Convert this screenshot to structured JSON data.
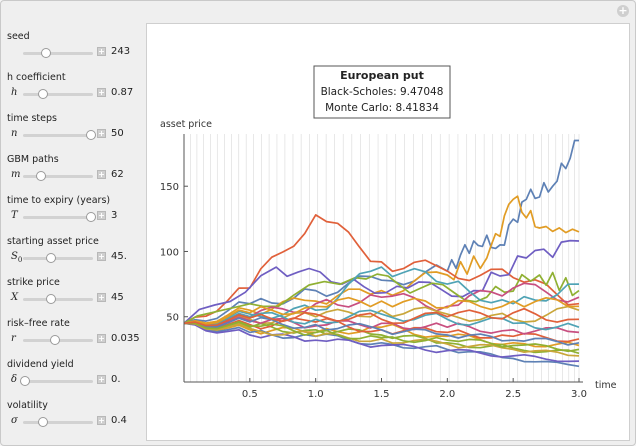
{
  "window": {
    "expand_icon": "plus-circle-icon"
  },
  "controls": [
    {
      "label": "seed",
      "symbol": "",
      "value": "243",
      "knob": 0.33
    },
    {
      "label": "h coefficient",
      "symbol": "h",
      "value": "0.87",
      "knob": 0.28
    },
    {
      "label": "time steps",
      "symbol": "n",
      "value": "50",
      "knob": 0.97
    },
    {
      "label": "GBM paths",
      "symbol": "m",
      "value": "62",
      "knob": 0.25
    },
    {
      "label": "time to expiry (years)",
      "symbol": "T",
      "value": "3",
      "knob": 0.97
    },
    {
      "label": "starting asset price",
      "symbol": "S",
      "value": "45.",
      "knob": 0.4
    },
    {
      "label": "strike price",
      "symbol": "X",
      "value": "45",
      "knob": 0.4
    },
    {
      "label": "risk–free rate",
      "symbol": "r",
      "value": "0.035",
      "knob": 0.45
    },
    {
      "label": "dividend yield",
      "symbol": "δ",
      "value": "0.",
      "knob": 0.03
    },
    {
      "label": "volatility",
      "symbol": "σ",
      "value": "0.4",
      "knob": 0.28
    }
  ],
  "legend_box": {
    "title": "European put",
    "line1": "Black-Scholes: 9.47048",
    "line2": "Monte Carlo: 8.41834"
  },
  "chart_data": {
    "type": "line",
    "ylabel": "asset price",
    "xlabel": "time",
    "xlim": [
      0,
      3.0
    ],
    "ylim": [
      0,
      190
    ],
    "xticks": [
      "0.5",
      "1.0",
      "1.5",
      "2.0",
      "2.5",
      "3.0"
    ],
    "yticks": [
      "50",
      "100",
      "150"
    ],
    "series": [
      {
        "color": "#5e81b5",
        "values": [
          [
            0,
            45
          ],
          [
            0.5,
            60
          ],
          [
            1.0,
            70
          ],
          [
            1.5,
            78
          ],
          [
            2.0,
            85
          ],
          [
            2.2,
            108
          ],
          [
            2.4,
            105
          ],
          [
            2.6,
            140
          ],
          [
            2.8,
            150
          ],
          [
            3.0,
            185
          ]
        ]
      },
      {
        "color": "#e19c24",
        "values": [
          [
            0,
            45
          ],
          [
            0.5,
            55
          ],
          [
            1.0,
            62
          ],
          [
            1.5,
            70
          ],
          [
            2.0,
            82
          ],
          [
            2.3,
            95
          ],
          [
            2.5,
            140
          ],
          [
            2.7,
            118
          ],
          [
            3.0,
            115
          ]
        ]
      },
      {
        "color": "#e0603a",
        "values": [
          [
            0,
            45
          ],
          [
            0.5,
            72
          ],
          [
            1.0,
            128
          ],
          [
            1.5,
            92
          ],
          [
            2.0,
            85
          ],
          [
            2.5,
            80
          ],
          [
            3.0,
            60
          ]
        ]
      },
      {
        "color": "#6f5ec2",
        "values": [
          [
            0,
            45
          ],
          [
            0.7,
            88
          ],
          [
            1.2,
            75
          ],
          [
            1.7,
            72
          ],
          [
            2.2,
            70
          ],
          [
            2.6,
            95
          ],
          [
            3.0,
            108
          ]
        ]
      },
      {
        "color": "#8fb032",
        "values": [
          [
            0,
            45
          ],
          [
            0.6,
            58
          ],
          [
            1.3,
            80
          ],
          [
            1.8,
            72
          ],
          [
            2.3,
            65
          ],
          [
            2.7,
            82
          ],
          [
            3.0,
            70
          ]
        ]
      },
      {
        "color": "#c84f80",
        "values": [
          [
            0,
            45
          ],
          [
            0.5,
            50
          ],
          [
            1.0,
            60
          ],
          [
            1.5,
            65
          ],
          [
            2.0,
            58
          ],
          [
            2.5,
            72
          ],
          [
            3.0,
            65
          ]
        ]
      },
      {
        "color": "#4fa3b5",
        "values": [
          [
            0,
            45
          ],
          [
            0.5,
            52
          ],
          [
            1.0,
            55
          ],
          [
            1.5,
            88
          ],
          [
            2.0,
            75
          ],
          [
            2.5,
            60
          ],
          [
            3.0,
            75
          ]
        ]
      },
      {
        "color": "#c9a63a",
        "values": [
          [
            0,
            45
          ],
          [
            0.5,
            48
          ],
          [
            1.0,
            50
          ],
          [
            1.5,
            55
          ],
          [
            2.0,
            52
          ],
          [
            2.5,
            48
          ],
          [
            3.0,
            55
          ]
        ]
      },
      {
        "color": "#e19c24",
        "values": [
          [
            0,
            45
          ],
          [
            0.5,
            40
          ],
          [
            1.0,
            38
          ],
          [
            1.5,
            42
          ],
          [
            2.0,
            35
          ],
          [
            2.5,
            30
          ],
          [
            3.0,
            28
          ]
        ]
      },
      {
        "color": "#5e81b5",
        "values": [
          [
            0,
            45
          ],
          [
            0.5,
            38
          ],
          [
            1.0,
            35
          ],
          [
            1.5,
            30
          ],
          [
            2.0,
            25
          ],
          [
            2.5,
            18
          ],
          [
            3.0,
            12
          ]
        ]
      },
      {
        "color": "#8fb032",
        "values": [
          [
            0,
            45
          ],
          [
            0.5,
            42
          ],
          [
            1.0,
            40
          ],
          [
            1.5,
            36
          ],
          [
            2.0,
            30
          ],
          [
            2.5,
            26
          ],
          [
            3.0,
            22
          ]
        ]
      },
      {
        "color": "#e0603a",
        "values": [
          [
            0,
            45
          ],
          [
            0.5,
            44
          ],
          [
            1.0,
            46
          ],
          [
            1.5,
            40
          ],
          [
            2.0,
            38
          ],
          [
            2.5,
            35
          ],
          [
            3.0,
            33
          ]
        ]
      },
      {
        "color": "#6f5ec2",
        "values": [
          [
            0,
            45
          ],
          [
            0.5,
            36
          ],
          [
            1.0,
            32
          ],
          [
            1.5,
            28
          ],
          [
            2.0,
            24
          ],
          [
            2.5,
            20
          ],
          [
            3.0,
            16
          ]
        ]
      },
      {
        "color": "#c84f80",
        "values": [
          [
            0,
            45
          ],
          [
            0.5,
            47
          ],
          [
            1.0,
            43
          ],
          [
            1.5,
            45
          ],
          [
            2.0,
            42
          ],
          [
            2.5,
            40
          ],
          [
            3.0,
            38
          ]
        ]
      },
      {
        "color": "#4fa3b5",
        "values": [
          [
            0,
            45
          ],
          [
            0.5,
            50
          ],
          [
            1.0,
            48
          ],
          [
            1.5,
            52
          ],
          [
            2.0,
            48
          ],
          [
            2.5,
            45
          ],
          [
            3.0,
            42
          ]
        ]
      },
      {
        "color": "#c9a63a",
        "values": [
          [
            0,
            45
          ],
          [
            0.5,
            41
          ],
          [
            1.0,
            35
          ],
          [
            1.5,
            33
          ],
          [
            2.0,
            29
          ],
          [
            2.5,
            25
          ],
          [
            3.0,
            20
          ]
        ]
      },
      {
        "color": "#e19c24",
        "values": [
          [
            0,
            45
          ],
          [
            0.5,
            53
          ],
          [
            1.0,
            58
          ],
          [
            1.5,
            62
          ],
          [
            2.0,
            57
          ],
          [
            2.5,
            62
          ],
          [
            3.0,
            58
          ]
        ]
      },
      {
        "color": "#5e81b5",
        "values": [
          [
            0,
            45
          ],
          [
            0.5,
            46
          ],
          [
            1.0,
            44
          ],
          [
            1.5,
            40
          ],
          [
            2.0,
            36
          ],
          [
            2.5,
            32
          ],
          [
            3.0,
            30
          ]
        ]
      },
      {
        "color": "#8fb032",
        "values": [
          [
            0,
            45
          ],
          [
            0.5,
            43
          ],
          [
            1.0,
            38
          ],
          [
            1.5,
            34
          ],
          [
            2.0,
            32
          ],
          [
            2.5,
            28
          ],
          [
            3.0,
            25
          ]
        ]
      },
      {
        "color": "#e0603a",
        "values": [
          [
            0,
            45
          ],
          [
            0.5,
            49
          ],
          [
            1.0,
            52
          ],
          [
            1.5,
            48
          ],
          [
            2.0,
            50
          ],
          [
            2.5,
            53
          ],
          [
            3.0,
            48
          ]
        ]
      }
    ]
  }
}
